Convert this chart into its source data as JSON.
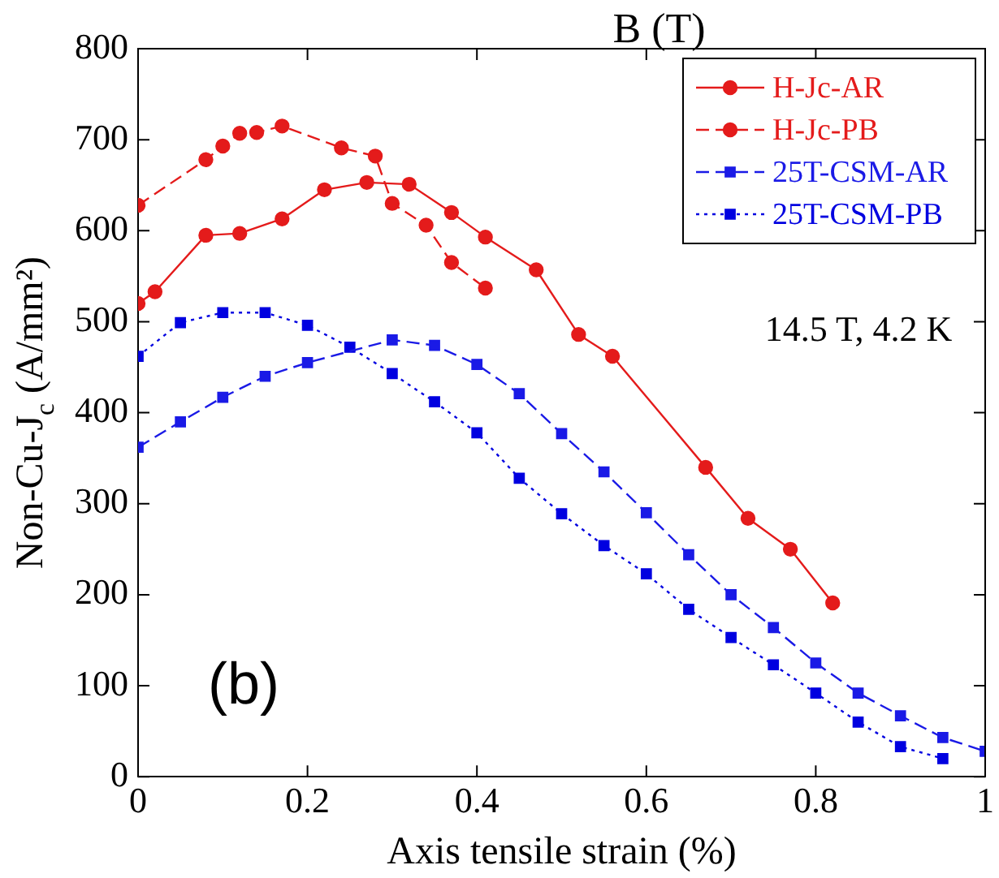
{
  "chart_data": {
    "type": "line",
    "title": "B (T)",
    "xlabel": "Axis tensile strain (%)",
    "ylabel": "Non-Cu-J$_{c}$ (A/mm²)",
    "xlim": [
      0,
      1
    ],
    "xticks": [
      0,
      0.2,
      0.4,
      0.6,
      0.8,
      1
    ],
    "ylim": [
      0,
      800
    ],
    "yticks": [
      0,
      100,
      200,
      300,
      400,
      500,
      600,
      700,
      800
    ],
    "grid": false,
    "legend": "top right",
    "annotations": [
      "14.5 T, 4.2 K",
      "(b)"
    ],
    "series": [
      {
        "name": "H-Jc-AR",
        "color": "#e41b1b",
        "marker": "circle",
        "line_style": "solid",
        "x": [
          0,
          0.02,
          0.08,
          0.12,
          0.17,
          0.22,
          0.27,
          0.32,
          0.37,
          0.41,
          0.47,
          0.52,
          0.56,
          0.67,
          0.72,
          0.77,
          0.82
        ],
        "values": [
          520,
          533,
          595,
          597,
          613,
          645,
          653,
          651,
          620,
          593,
          557,
          486,
          462,
          340,
          284,
          250,
          191
        ]
      },
      {
        "name": "H-Jc-PB",
        "color": "#e41b1b",
        "marker": "circle",
        "line_style": "dashed",
        "x": [
          0,
          0.08,
          0.1,
          0.12,
          0.14,
          0.17,
          0.24,
          0.28,
          0.3,
          0.34,
          0.37,
          0.41
        ],
        "values": [
          628,
          678,
          693,
          707,
          708,
          715,
          691,
          682,
          630,
          606,
          565,
          537
        ]
      },
      {
        "name": "25T-CSM-AR",
        "color": "#1a1ae6",
        "marker": "square",
        "line_style": "dashed",
        "x": [
          0,
          0.05,
          0.1,
          0.15,
          0.2,
          0.3,
          0.35,
          0.4,
          0.45,
          0.5,
          0.55,
          0.6,
          0.65,
          0.7,
          0.75,
          0.8,
          0.85,
          0.9,
          0.95,
          1.0
        ],
        "values": [
          362,
          390,
          417,
          440,
          455,
          480,
          474,
          453,
          421,
          377,
          335,
          290,
          244,
          200,
          164,
          125,
          92,
          67,
          43,
          28
        ]
      },
      {
        "name": "25T-CSM-PB",
        "color": "#0000e0",
        "marker": "square",
        "line_style": "dotted",
        "x": [
          0,
          0.05,
          0.1,
          0.15,
          0.2,
          0.25,
          0.3,
          0.35,
          0.4,
          0.45,
          0.5,
          0.55,
          0.6,
          0.65,
          0.7,
          0.75,
          0.8,
          0.85,
          0.9,
          0.95
        ],
        "values": [
          462,
          499,
          510,
          510,
          496,
          472,
          443,
          412,
          378,
          328,
          289,
          254,
          223,
          184,
          153,
          123,
          92,
          60,
          33,
          20
        ]
      }
    ]
  }
}
